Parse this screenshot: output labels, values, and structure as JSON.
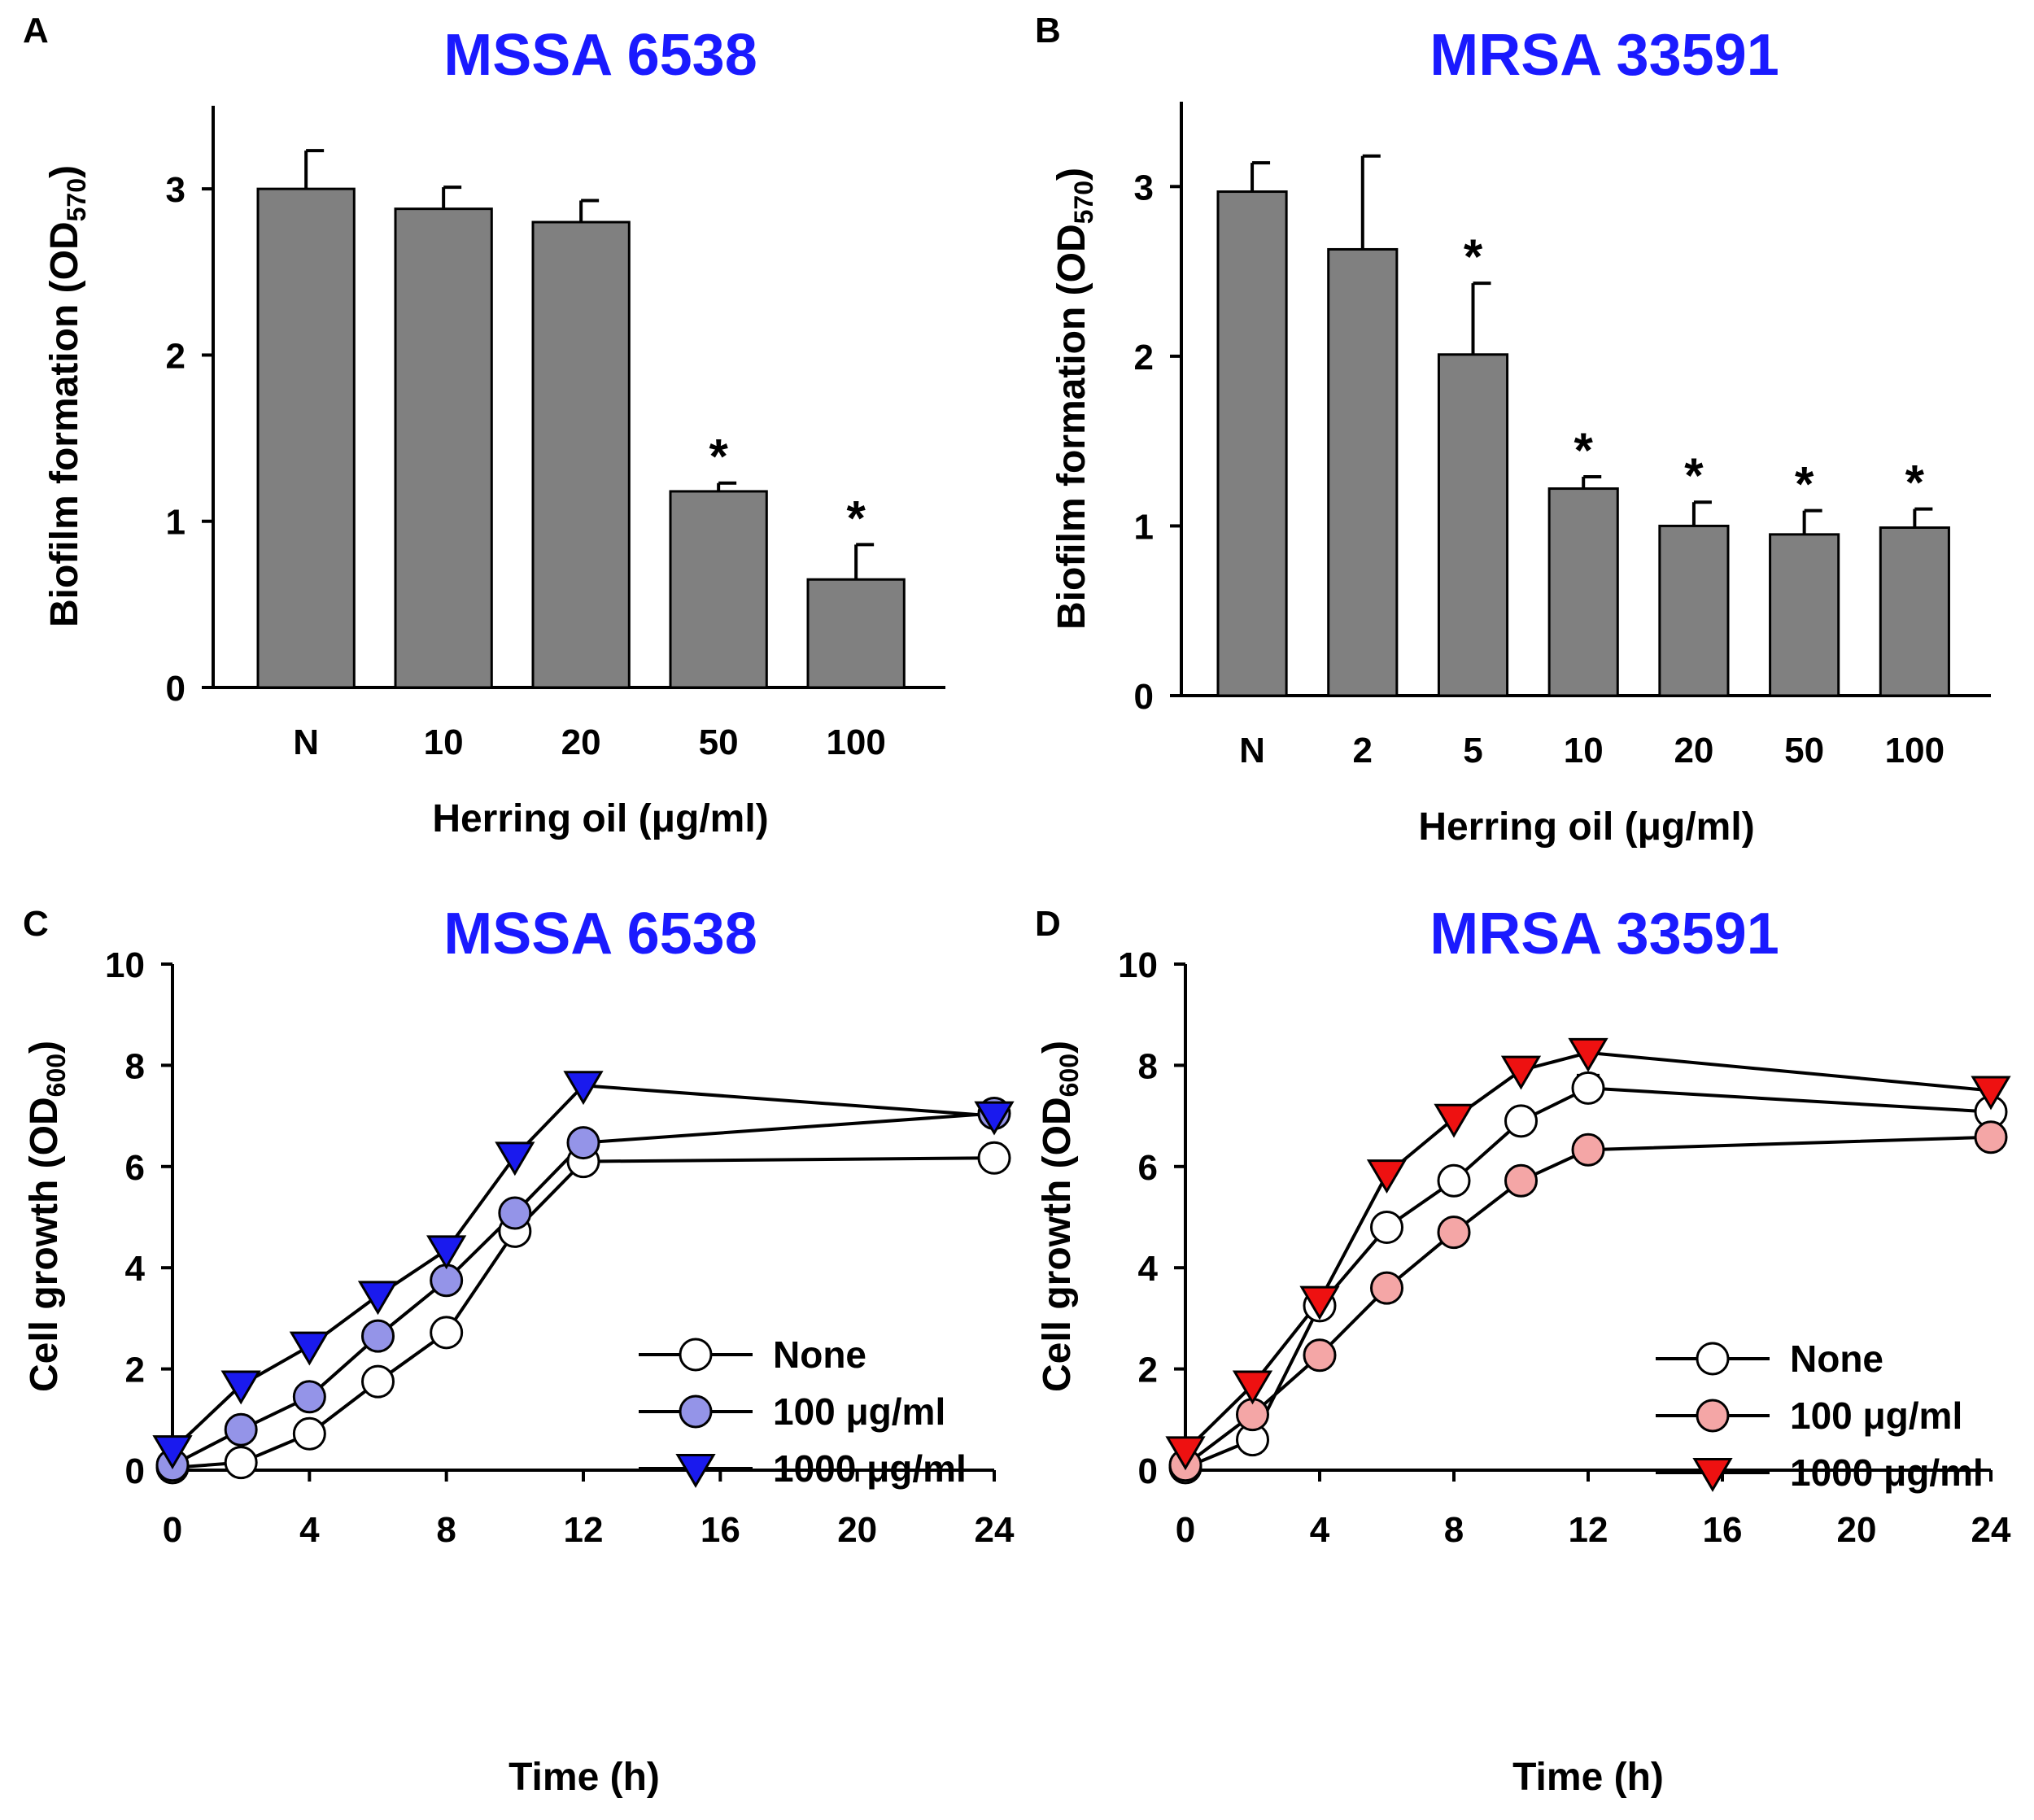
{
  "chart_data": [
    {
      "panel": "A",
      "type": "bar",
      "title": "MSSA 6538",
      "title_color": "#1a1aff",
      "xlabel": "Herring oil (μg/ml)",
      "ylabel": "Biofilm formation (OD570)",
      "ylabel_main": "Biofilm formation (OD",
      "ylabel_sub": "570",
      "ylabel_close": ")",
      "ylim": [
        0,
        3.5
      ],
      "yticks": [
        "0",
        "1",
        "2",
        "3"
      ],
      "categories": [
        "N",
        "10",
        "20",
        "50",
        "100"
      ],
      "values": [
        3.0,
        2.88,
        2.8,
        1.18,
        0.65
      ],
      "errors": [
        0.23,
        0.13,
        0.13,
        0.05,
        0.21
      ],
      "significant": [
        false,
        false,
        false,
        true,
        true
      ],
      "significance_marker": "*",
      "bar_color": "#808080"
    },
    {
      "panel": "B",
      "type": "bar",
      "title": "MRSA 33591",
      "title_color": "#1a1aff",
      "xlabel": "Herring oil (μg/ml)",
      "ylabel": "Biofilm formation (OD570)",
      "ylabel_main": "Biofilm formation (OD",
      "ylabel_sub": "570",
      "ylabel_close": ")",
      "ylim": [
        0,
        3.5
      ],
      "yticks": [
        "0",
        "1",
        "2",
        "3"
      ],
      "categories": [
        "N",
        "2",
        "5",
        "10",
        "20",
        "50",
        "100"
      ],
      "values": [
        2.97,
        2.63,
        2.01,
        1.22,
        1.0,
        0.95,
        0.99
      ],
      "errors": [
        0.17,
        0.55,
        0.42,
        0.07,
        0.14,
        0.14,
        0.11
      ],
      "significant": [
        false,
        false,
        true,
        true,
        true,
        true,
        true
      ],
      "significance_marker": "*",
      "bar_color": "#808080"
    },
    {
      "panel": "C",
      "type": "line",
      "title": "MSSA 6538",
      "title_color": "#1a1aff",
      "xlabel": "Time (h)",
      "ylabel": "Cell growth (OD600)",
      "ylabel_main": "Cell growth (OD",
      "ylabel_sub": "600",
      "ylabel_close": ")",
      "xlim": [
        0,
        24
      ],
      "ylim": [
        0,
        10
      ],
      "xticks": [
        "0",
        "4",
        "8",
        "12",
        "16",
        "20",
        "24"
      ],
      "yticks": [
        "0",
        "2",
        "4",
        "6",
        "8",
        "10"
      ],
      "x": [
        0,
        2,
        4,
        6,
        8,
        10,
        12,
        24
      ],
      "series": [
        {
          "name": "None",
          "marker": "circle",
          "fill": "#ffffff",
          "values": [
            0.05,
            0.15,
            0.72,
            1.75,
            2.72,
            4.72,
            6.1,
            6.17
          ],
          "errors": [
            0,
            0,
            0,
            0,
            0,
            0,
            0,
            0
          ]
        },
        {
          "name": "100 μg/ml",
          "marker": "circle",
          "fill": "#9494e8",
          "values": [
            0.1,
            0.8,
            1.45,
            2.65,
            3.75,
            5.08,
            6.47,
            7.05
          ],
          "errors": [
            0,
            0,
            0,
            0,
            0,
            0,
            0,
            0
          ]
        },
        {
          "name": "1000 μg/ml",
          "marker": "triangle-down",
          "fill": "#1a1aee",
          "values": [
            0.4,
            1.68,
            2.45,
            3.45,
            4.35,
            6.2,
            7.6,
            7.0
          ],
          "errors": [
            0,
            0,
            0,
            0,
            0,
            0,
            0,
            0
          ]
        }
      ],
      "legend_position": "center-right"
    },
    {
      "panel": "D",
      "type": "line",
      "title": "MRSA 33591",
      "title_color": "#1a1aff",
      "xlabel": "Time (h)",
      "ylabel": "Cell growth (OD600)",
      "ylabel_main": "Cell growth (OD",
      "ylabel_sub": "600",
      "ylabel_close": ")",
      "xlim": [
        0,
        24
      ],
      "ylim": [
        0,
        10
      ],
      "xticks": [
        "0",
        "4",
        "8",
        "12",
        "16",
        "20",
        "24"
      ],
      "yticks": [
        "0",
        "2",
        "4",
        "6",
        "8",
        "10"
      ],
      "x": [
        0,
        2,
        4,
        6,
        8,
        10,
        12,
        24
      ],
      "series": [
        {
          "name": "None",
          "marker": "circle",
          "fill": "#ffffff",
          "values": [
            0.05,
            0.6,
            3.25,
            4.8,
            5.72,
            6.9,
            7.55,
            7.08
          ],
          "errors": [
            0,
            0,
            0,
            0,
            0,
            0,
            0.25,
            0
          ]
        },
        {
          "name": "100 μg/ml",
          "marker": "circle",
          "fill": "#f4a6a6",
          "values": [
            0.1,
            1.1,
            2.27,
            3.6,
            4.7,
            5.72,
            6.33,
            6.58
          ],
          "errors": [
            0,
            0,
            0,
            0,
            0,
            0,
            0,
            0
          ]
        },
        {
          "name": "1000 μg/ml",
          "marker": "triangle-down",
          "fill": "#ee1111",
          "values": [
            0.38,
            1.68,
            3.35,
            5.85,
            6.95,
            7.9,
            8.25,
            7.5
          ],
          "errors": [
            0,
            0,
            0,
            0.2,
            0,
            0,
            0.22,
            0
          ]
        }
      ],
      "legend_position": "center-right"
    }
  ]
}
